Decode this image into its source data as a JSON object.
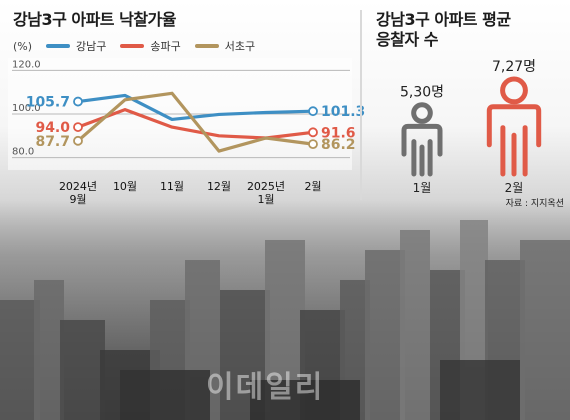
{
  "chart_data": [
    {
      "type": "line",
      "title": "강남3구 아파트 낙찰가율",
      "unit": "(%)",
      "categories": [
        "2024년\n9월",
        "10월",
        "11월",
        "12월",
        "2025년\n1월",
        "2월"
      ],
      "y_ticks": [
        "120.0",
        "100.0",
        "80.0"
      ],
      "ylim": [
        78,
        122
      ],
      "grid": true,
      "legend_position": "top",
      "series": [
        {
          "name": "강남구",
          "color": "#3e8fc4",
          "values": [
            105.7,
            108.5,
            97.5,
            99.8,
            100.7,
            101.3
          ],
          "labels": {
            "first": "105.7",
            "last": "101.3"
          }
        },
        {
          "name": "송파구",
          "color": "#e05a47",
          "values": [
            94.0,
            102.0,
            94.0,
            90.0,
            89.0,
            91.6
          ],
          "labels": {
            "first": "94.0",
            "last": "91.6"
          }
        },
        {
          "name": "서초구",
          "color": "#b2955e",
          "values": [
            87.7,
            106.5,
            109.5,
            83.0,
            89.0,
            86.2
          ],
          "labels": {
            "first": "87.7",
            "last": "86.2"
          }
        }
      ]
    },
    {
      "type": "bar",
      "title": "강남3구 아파트 평균\n응찰자 수",
      "categories": [
        "1월",
        "2월"
      ],
      "values": [
        5.3,
        7.27
      ],
      "value_labels": [
        "5,30명",
        "7,27명"
      ],
      "colors": [
        "#6f6f6f",
        "#e05a47"
      ]
    }
  ],
  "source": "자료 : 지지옥션",
  "watermark": "이데일리"
}
